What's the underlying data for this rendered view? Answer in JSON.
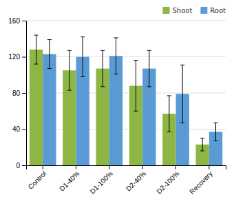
{
  "chart_data": {
    "type": "bar",
    "categories": [
      "Control",
      "D1-40%",
      "D1-100%",
      "D2-40%",
      "D2-100%",
      "Recovery"
    ],
    "series": [
      {
        "name": "Shoot",
        "color": "#8db645",
        "values": [
          128,
          105,
          107,
          88,
          57,
          23
        ],
        "errors": [
          16,
          22,
          20,
          28,
          20,
          7
        ]
      },
      {
        "name": "Root",
        "color": "#5b9bd5",
        "values": [
          123,
          120,
          121,
          107,
          79,
          37
        ],
        "errors": [
          16,
          22,
          20,
          20,
          32,
          10
        ]
      }
    ],
    "ylim": [
      0,
      160
    ],
    "yticks": [
      0,
      40,
      80,
      120,
      160
    ],
    "grid": true,
    "legend": "upper right"
  }
}
